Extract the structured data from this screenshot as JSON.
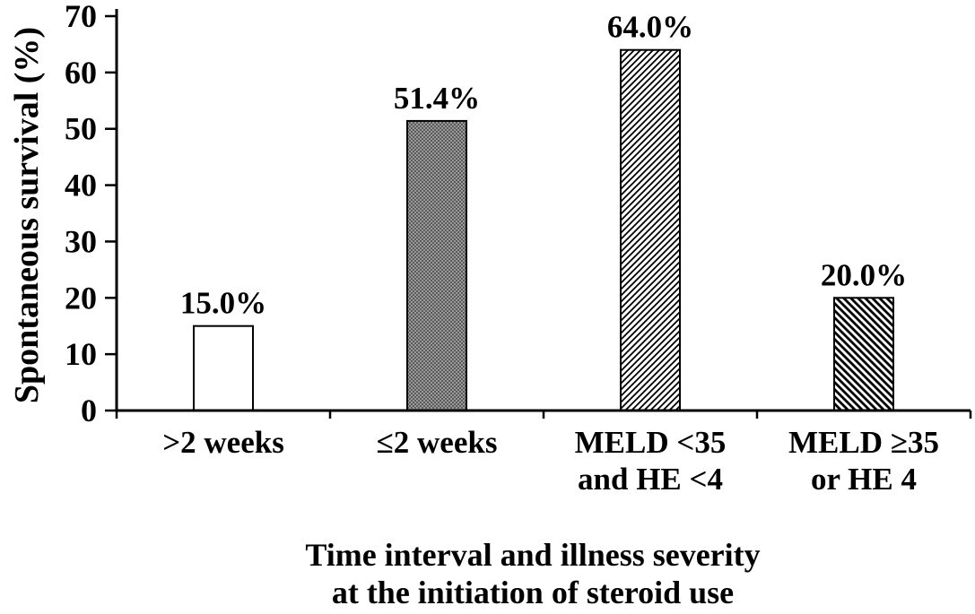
{
  "chart_data": {
    "type": "bar",
    "title": "",
    "categories": [
      ">2 weeks",
      "≤2 weeks",
      "MELD <35\nand HE <4",
      "MELD ≥35\nor HE 4"
    ],
    "values": [
      15.0,
      51.4,
      64.0,
      20.0
    ],
    "value_labels": [
      "15.0%",
      "51.4%",
      "64.0%",
      "20.0%"
    ],
    "ylabel": "Spontaneous survival (%)",
    "xlabel_line1": "Time interval and illness severity",
    "xlabel_line2": "at the initiation of steroid use",
    "ylim": [
      0,
      70
    ],
    "yticks": [
      0,
      10,
      20,
      30,
      40,
      50,
      60,
      70
    ],
    "grid": false,
    "legend": "none",
    "bar_styles": [
      "white",
      "gray-dots",
      "hatch-forward",
      "hatch-backward"
    ],
    "colors": {
      "axis": "#000000",
      "text": "#000000",
      "background": "#ffffff",
      "bar_outline": "#000000"
    }
  }
}
